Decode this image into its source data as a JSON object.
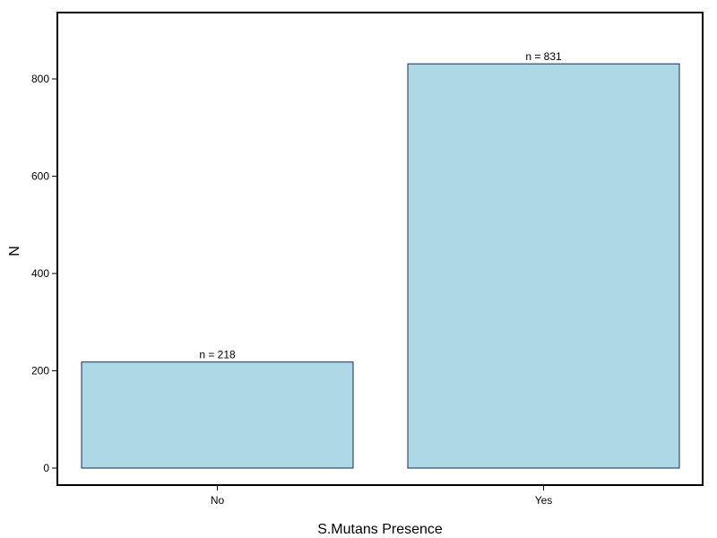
{
  "chart_data": {
    "type": "bar",
    "categories": [
      "No",
      "Yes"
    ],
    "values": [
      218,
      831
    ],
    "data_labels": [
      "n =  218",
      "n =  831"
    ],
    "xlabel": "S.Mutans Presence",
    "ylabel": "N",
    "ylim": [
      -35,
      935
    ],
    "yticks": [
      0,
      200,
      400,
      600,
      800
    ],
    "bar_fill": "#add8e6",
    "bar_stroke": "#1a2a5a",
    "grid": false,
    "legend": "none"
  }
}
